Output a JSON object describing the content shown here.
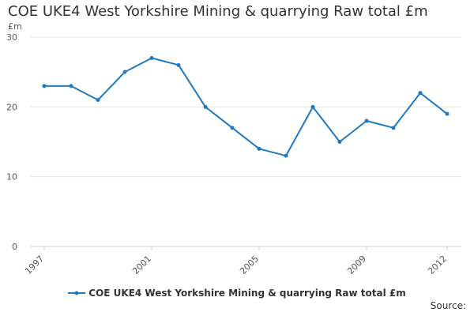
{
  "chart_data": {
    "type": "line",
    "title": "COE UKE4 West Yorkshire Mining & quarrying Raw total £m",
    "ylabel": "£m",
    "xlabel": "",
    "ylim": [
      0,
      30
    ],
    "yticks": [
      0,
      10,
      20,
      30
    ],
    "xticks": [
      1997,
      2001,
      2005,
      2009,
      2012
    ],
    "grid": true,
    "legend_position": "bottom",
    "x": [
      1997,
      1998,
      1999,
      2000,
      2001,
      2002,
      2003,
      2004,
      2005,
      2006,
      2007,
      2008,
      2009,
      2010,
      2011,
      2012
    ],
    "series": [
      {
        "name": "COE UKE4 West Yorkshire Mining & quarrying Raw total £m",
        "color": "#1f7ac0",
        "values": [
          23,
          23,
          21,
          25,
          27,
          26,
          20,
          17,
          14,
          13,
          20,
          15,
          18,
          17,
          22,
          19
        ]
      }
    ]
  },
  "footer": {
    "source_label": "Source:"
  }
}
